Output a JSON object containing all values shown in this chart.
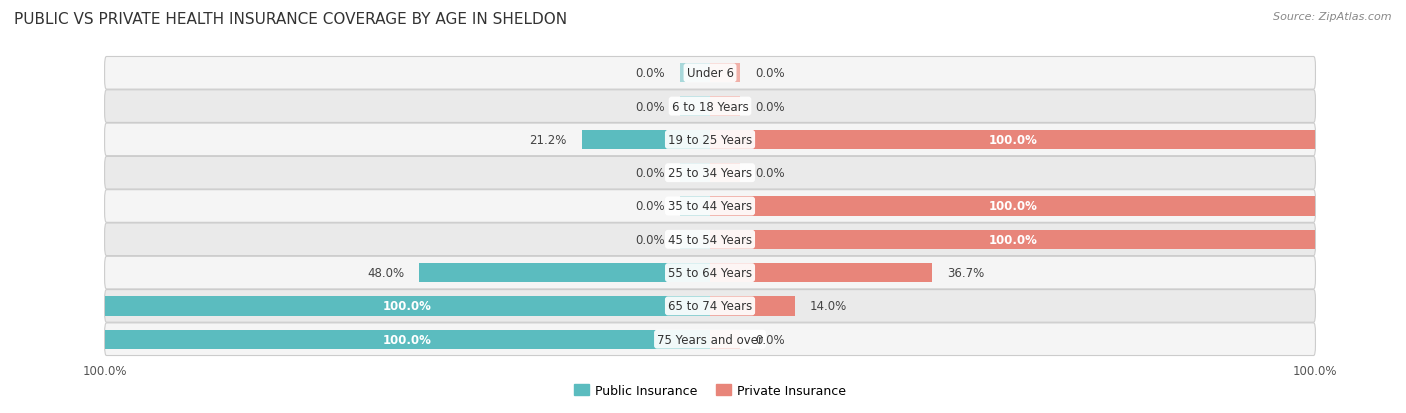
{
  "title": "PUBLIC VS PRIVATE HEALTH INSURANCE COVERAGE BY AGE IN SHELDON",
  "source": "Source: ZipAtlas.com",
  "categories": [
    "Under 6",
    "6 to 18 Years",
    "19 to 25 Years",
    "25 to 34 Years",
    "35 to 44 Years",
    "45 to 54 Years",
    "55 to 64 Years",
    "65 to 74 Years",
    "75 Years and over"
  ],
  "public_values": [
    0.0,
    0.0,
    21.2,
    0.0,
    0.0,
    0.0,
    48.0,
    100.0,
    100.0
  ],
  "private_values": [
    0.0,
    0.0,
    100.0,
    0.0,
    100.0,
    100.0,
    36.7,
    14.0,
    0.0
  ],
  "public_color": "#5bbcbf",
  "private_color": "#e8857a",
  "public_stub_color": "#a8d8da",
  "private_stub_color": "#f0b0a8",
  "row_bg_color_odd": "#f5f5f5",
  "row_bg_color_even": "#eaeaea",
  "max_val": 100.0,
  "title_fontsize": 11,
  "label_fontsize": 8.5,
  "tick_fontsize": 8.5,
  "source_fontsize": 8,
  "legend_fontsize": 9,
  "bg_color": "#ffffff",
  "stub_size": 5.0
}
